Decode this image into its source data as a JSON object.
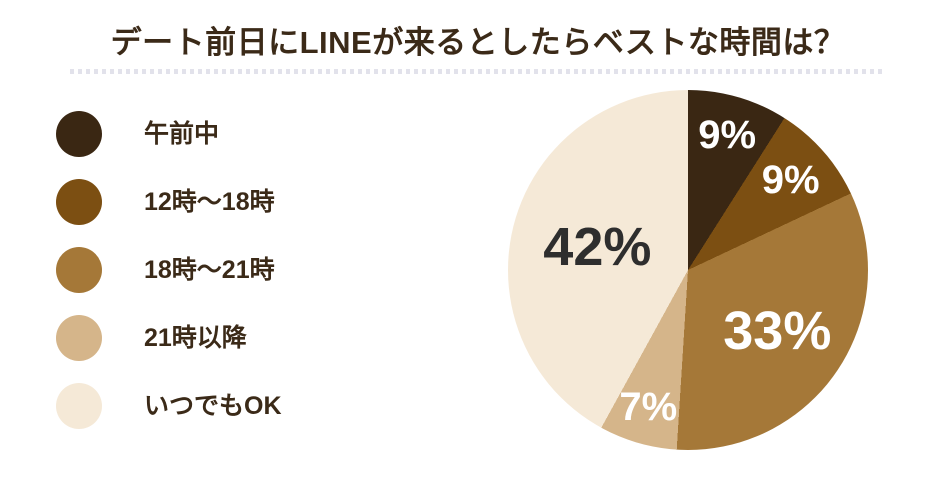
{
  "page": {
    "background": "#ffffff"
  },
  "header": {
    "title": "デート前日にLINEが来るとしたらベストな時間は？",
    "title_color": "#3b2a18",
    "underline_color": "#e2e2eb"
  },
  "legend": {
    "text_color": "#3b2a18"
  },
  "chart_data": {
    "type": "pie",
    "title": "デート前日にLINEが来るとしたらベストな時間は？",
    "categories": [
      "午前中",
      "12時〜18時",
      "18時〜21時",
      "21時以降",
      "いつでもOK"
    ],
    "values": [
      9,
      9,
      33,
      7,
      42
    ],
    "labels": [
      "9%",
      "9%",
      "33%",
      "7%",
      "42%"
    ],
    "colors": [
      "#3a2713",
      "#7c4f12",
      "#a57838",
      "#d5b58a",
      "#f5e9d7"
    ],
    "label_colors": [
      "#ffffff",
      "#ffffff",
      "#ffffff",
      "#ffffff",
      "#2e2e2e"
    ],
    "label_font_px": [
      40,
      40,
      54,
      40,
      54
    ],
    "label_radius_fraction": [
      0.78,
      0.76,
      0.6,
      0.79,
      0.52
    ],
    "total": 100,
    "start_angle_deg": 0,
    "direction": "clockwise",
    "legend_position": "left",
    "grid": false
  }
}
